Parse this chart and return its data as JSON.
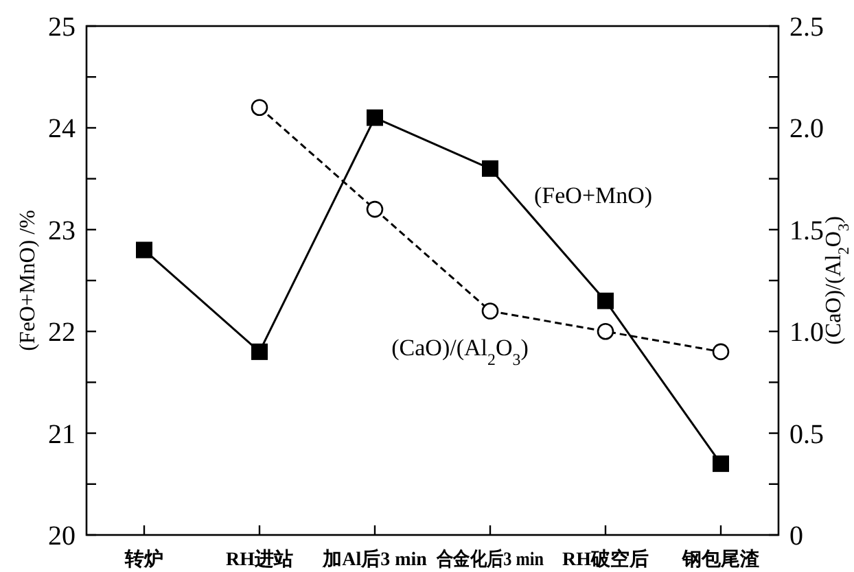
{
  "chart_data": {
    "type": "line",
    "ylabel": "(FeO+MnO) /%",
    "y2label": "(CaO)/(Al$_{2}$O$_{3}$)",
    "categories": [
      "转炉",
      "RH进站",
      "加Al后3 min",
      "合金化后3 min",
      "RH破空后",
      "钢包尾渣"
    ],
    "series": [
      {
        "name": "(FeO+MnO)",
        "color": "#000000",
        "marker": "square",
        "line_style": "solid",
        "values": [
          22.8,
          21.8,
          24.1,
          23.6,
          22.3,
          20.7
        ]
      },
      {
        "name": "(CaO)/(Al$_{2}$O$_{3}$)",
        "color": "#000000",
        "marker": "circle",
        "line_style": "dashed",
        "axis": "y2",
        "values": [
          null,
          2.1,
          1.6,
          1.1,
          1.0,
          0.9
        ]
      }
    ],
    "ylim": [
      20,
      25
    ],
    "yticks": [
      20,
      {
        "value": 20.5,
        "label": null
      },
      21,
      {
        "value": 21.5,
        "label": null
      },
      22,
      {
        "value": 22.5,
        "label": null
      },
      23,
      {
        "value": 23.5,
        "label": null
      },
      24,
      {
        "value": 24.5,
        "label": null
      },
      25
    ],
    "y2lim": [
      0,
      2.5
    ],
    "y2ticks": [
      0,
      {
        "value": 0.25,
        "label": null
      },
      {
        "value": 0.5,
        "label": "0.5"
      },
      {
        "value": 0.75,
        "label": null
      },
      {
        "value": 1,
        "label": "1.0"
      },
      {
        "value": 1.25,
        "label": null
      },
      {
        "value": 1.5,
        "label": "1.5"
      },
      {
        "value": 1.75,
        "label": null
      },
      {
        "value": 2,
        "label": "2.0"
      },
      {
        "value": 2.25,
        "label": null
      },
      {
        "value": 2.5,
        "label": "2.5"
      }
    ],
    "grid": false
  }
}
